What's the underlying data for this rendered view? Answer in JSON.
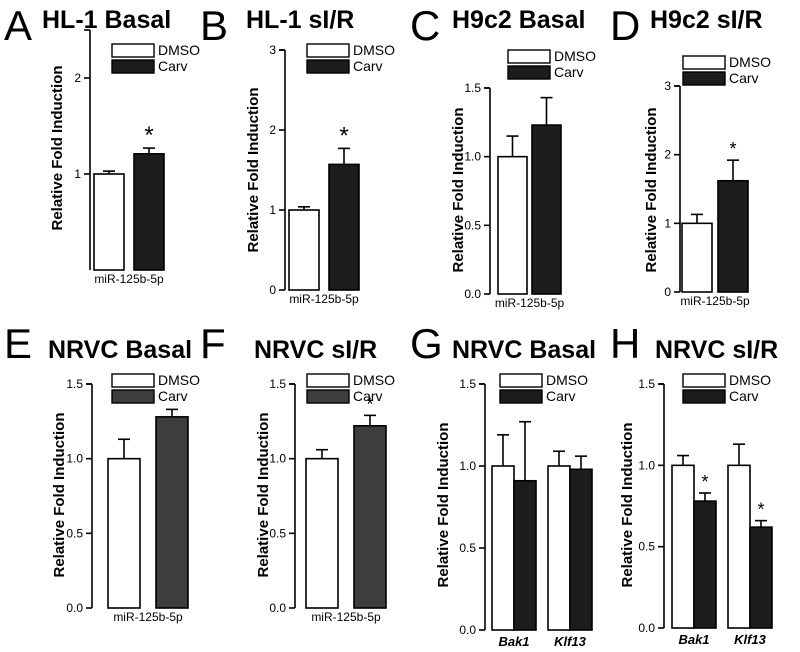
{
  "chart_data": [
    {
      "panel": "A",
      "title": "HL-1 Basal",
      "type": "bar",
      "ylabel": "Relative Fold Induction",
      "ylim": [
        0,
        2.5
      ],
      "yticks": [
        "1",
        "2"
      ],
      "categories": [
        "miR-125b-5p"
      ],
      "legend": [
        "DMSO",
        "Carv"
      ],
      "series": [
        {
          "name": "DMSO",
          "values": [
            1.0
          ],
          "errors": [
            0.03
          ],
          "color": "#ffffff"
        },
        {
          "name": "Carv",
          "values": [
            1.21
          ],
          "errors": [
            0.06
          ],
          "color": "#1c1c1c",
          "sig": [
            "*"
          ]
        }
      ]
    },
    {
      "panel": "B",
      "title": "HL-1 sI/R",
      "type": "bar",
      "ylabel": "Relative Fold Induction",
      "ylim": [
        0,
        3
      ],
      "yticks": [
        "0",
        "1",
        "2",
        "3"
      ],
      "categories": [
        "miR-125b-5p"
      ],
      "legend": [
        "DMSO",
        "Carv"
      ],
      "series": [
        {
          "name": "DMSO",
          "values": [
            1.0
          ],
          "errors": [
            0.04
          ],
          "color": "#ffffff"
        },
        {
          "name": "Carv",
          "values": [
            1.57
          ],
          "errors": [
            0.2
          ],
          "color": "#1c1c1c",
          "sig": [
            "*"
          ]
        }
      ]
    },
    {
      "panel": "C",
      "title": "H9c2 Basal",
      "type": "bar",
      "ylabel": "Relative Fold Induction",
      "ylim": [
        0,
        1.5
      ],
      "yticks": [
        "0.0",
        "0.5",
        "1.0",
        "1.5"
      ],
      "categories": [
        "miR-125b-5p"
      ],
      "legend": [
        "DMSO",
        "Carv"
      ],
      "series": [
        {
          "name": "DMSO",
          "values": [
            1.0
          ],
          "errors": [
            0.15
          ],
          "color": "#ffffff"
        },
        {
          "name": "Carv",
          "values": [
            1.23
          ],
          "errors": [
            0.2
          ],
          "color": "#1c1c1c",
          "sig": [
            ""
          ]
        }
      ]
    },
    {
      "panel": "D",
      "title": "H9c2 sI/R",
      "type": "bar",
      "ylabel": "Relative Fold Induction",
      "ylim": [
        0,
        3
      ],
      "yticks": [
        "0",
        "1",
        "2",
        "3"
      ],
      "categories": [
        "miR-125b-5p"
      ],
      "legend": [
        "DMSO",
        "Carv"
      ],
      "series": [
        {
          "name": "DMSO",
          "values": [
            1.0
          ],
          "errors": [
            0.13
          ],
          "color": "#ffffff"
        },
        {
          "name": "Carv",
          "values": [
            1.62
          ],
          "errors": [
            0.3
          ],
          "color": "#1c1c1c",
          "sig": [
            "*"
          ]
        }
      ]
    },
    {
      "panel": "E",
      "title": "NRVC Basal",
      "type": "bar",
      "ylabel": "Relative Fold Induction",
      "ylim": [
        0,
        1.5
      ],
      "yticks": [
        "0.0",
        "0.5",
        "1.0",
        "1.5"
      ],
      "categories": [
        "miR-125b-5p"
      ],
      "legend": [
        "DMSO",
        "Carv"
      ],
      "series": [
        {
          "name": "DMSO",
          "values": [
            1.0
          ],
          "errors": [
            0.13
          ],
          "color": "#ffffff"
        },
        {
          "name": "Carv",
          "values": [
            1.28
          ],
          "errors": [
            0.05
          ],
          "color": "#3d3d3d",
          "sig": [
            ""
          ]
        }
      ]
    },
    {
      "panel": "F",
      "title": "NRVC sI/R",
      "type": "bar",
      "ylabel": "Relative Fold Induction",
      "ylim": [
        0,
        1.5
      ],
      "yticks": [
        "0.0",
        "0.5",
        "1.0",
        "1.5"
      ],
      "categories": [
        "miR-125b-5p"
      ],
      "legend": [
        "DMSO",
        "Carv"
      ],
      "series": [
        {
          "name": "DMSO",
          "values": [
            1.0
          ],
          "errors": [
            0.06
          ],
          "color": "#ffffff"
        },
        {
          "name": "Carv",
          "values": [
            1.22
          ],
          "errors": [
            0.07
          ],
          "color": "#3d3d3d",
          "sig": [
            "*"
          ]
        }
      ]
    },
    {
      "panel": "G",
      "title": "NRVC Basal",
      "type": "bar",
      "ylabel": "Relative Fold Induction",
      "ylim": [
        0,
        1.5
      ],
      "yticks": [
        "0.0",
        "0.5",
        "1.0",
        "1.5"
      ],
      "categories": [
        "Bak1",
        "Klf13"
      ],
      "italic": true,
      "legend": [
        "DMSO",
        "Carv"
      ],
      "series": [
        {
          "name": "DMSO",
          "values": [
            1.0,
            1.0
          ],
          "errors": [
            0.19,
            0.09
          ],
          "color": "#ffffff"
        },
        {
          "name": "Carv",
          "values": [
            0.91,
            0.98
          ],
          "errors": [
            0.36,
            0.08
          ],
          "color": "#1c1c1c",
          "sig": [
            "",
            ""
          ]
        }
      ]
    },
    {
      "panel": "H",
      "title": "NRVC sI/R",
      "type": "bar",
      "ylabel": "Relative Fold Induction",
      "ylim": [
        0,
        1.5
      ],
      "yticks": [
        "0.0",
        "0.5",
        "1.0",
        "1.5"
      ],
      "categories": [
        "Bak1",
        "Klf13"
      ],
      "italic": true,
      "legend": [
        "DMSO",
        "Carv"
      ],
      "series": [
        {
          "name": "DMSO",
          "values": [
            1.0,
            1.0
          ],
          "errors": [
            0.06,
            0.13
          ],
          "color": "#ffffff"
        },
        {
          "name": "Carv",
          "values": [
            0.78,
            0.62
          ],
          "errors": [
            0.05,
            0.04
          ],
          "color": "#1c1c1c",
          "sig": [
            "*",
            "*"
          ]
        }
      ]
    }
  ]
}
